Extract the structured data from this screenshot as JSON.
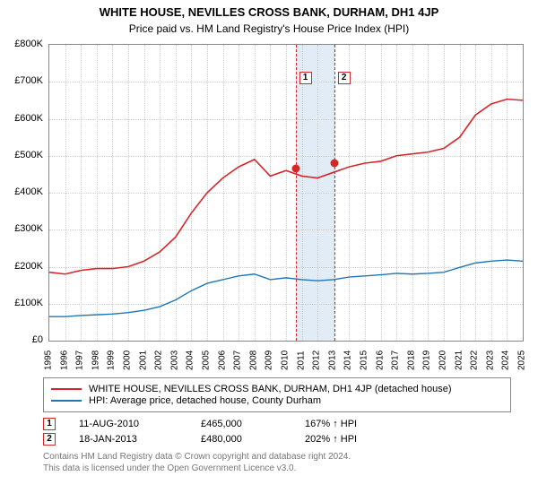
{
  "title": "WHITE HOUSE, NEVILLES CROSS BANK, DURHAM, DH1 4JP",
  "subtitle": "Price paid vs. HM Land Registry's House Price Index (HPI)",
  "chart": {
    "type": "line",
    "background_color": "#ffffff",
    "grid_color": "#cccccc",
    "grid_style": "dotted",
    "border_color": "#888888",
    "ylim": [
      0,
      800000
    ],
    "ytick_step": 100000,
    "ytick_labels": [
      "£0",
      "£100K",
      "£200K",
      "£300K",
      "£400K",
      "£500K",
      "£600K",
      "£700K",
      "£800K"
    ],
    "xlim": [
      1995,
      2025
    ],
    "xtick_step": 1,
    "label_fontsize": 11,
    "series": [
      {
        "name": "property",
        "color": "#d62728",
        "line_width": 1.6,
        "years": [
          1995,
          1996,
          1997,
          1998,
          1999,
          2000,
          2001,
          2002,
          2003,
          2004,
          2005,
          2006,
          2007,
          2008,
          2009,
          2010,
          2011,
          2012,
          2013,
          2014,
          2015,
          2016,
          2017,
          2018,
          2019,
          2020,
          2021,
          2022,
          2023,
          2024,
          2025
        ],
        "values": [
          185000,
          180000,
          190000,
          195000,
          195000,
          200000,
          215000,
          240000,
          280000,
          345000,
          400000,
          440000,
          470000,
          490000,
          445000,
          460000,
          445000,
          440000,
          455000,
          470000,
          480000,
          485000,
          500000,
          505000,
          510000,
          520000,
          550000,
          610000,
          640000,
          653000,
          650000
        ]
      },
      {
        "name": "hpi",
        "color": "#1f77b4",
        "line_width": 1.4,
        "years": [
          1995,
          1996,
          1997,
          1998,
          1999,
          2000,
          2001,
          2002,
          2003,
          2004,
          2005,
          2006,
          2007,
          2008,
          2009,
          2010,
          2011,
          2012,
          2013,
          2014,
          2015,
          2016,
          2017,
          2018,
          2019,
          2020,
          2021,
          2022,
          2023,
          2024,
          2025
        ],
        "values": [
          65000,
          65000,
          68000,
          70000,
          72000,
          76000,
          82000,
          92000,
          110000,
          135000,
          155000,
          165000,
          175000,
          180000,
          165000,
          170000,
          165000,
          162000,
          165000,
          172000,
          175000,
          178000,
          182000,
          180000,
          182000,
          185000,
          198000,
          210000,
          215000,
          218000,
          215000
        ]
      }
    ],
    "band": {
      "start_year": 2010.6,
      "end_year": 2013.05,
      "fill_color": "#e2ecf7"
    },
    "event_markers": [
      {
        "label": "1",
        "year": 2010.6,
        "price": 465000,
        "dot_color": "#d62728",
        "box_y": 0.09
      },
      {
        "label": "2",
        "year": 2013.05,
        "price": 480000,
        "dot_color": "#d62728",
        "box_y": 0.09
      }
    ]
  },
  "legend": {
    "items": [
      {
        "color": "#d62728",
        "label": "WHITE HOUSE, NEVILLES CROSS BANK, DURHAM, DH1 4JP (detached house)"
      },
      {
        "color": "#1f77b4",
        "label": "HPI: Average price, detached house, County Durham"
      }
    ]
  },
  "events": [
    {
      "marker": "1",
      "date": "11-AUG-2010",
      "price": "£465,000",
      "delta": "167% ↑ HPI"
    },
    {
      "marker": "2",
      "date": "18-JAN-2013",
      "price": "£480,000",
      "delta": "202% ↑ HPI"
    }
  ],
  "footer": {
    "line1": "Contains HM Land Registry data © Crown copyright and database right 2024.",
    "line2": "This data is licensed under the Open Government Licence v3.0."
  }
}
